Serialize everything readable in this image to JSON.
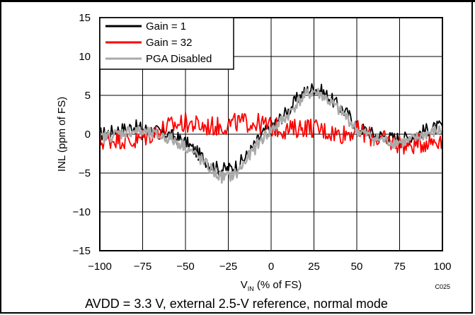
{
  "chart_data": {
    "type": "line",
    "title": "",
    "xlabel_main": "V",
    "xlabel_sub": "IN",
    "xlabel_rest": " (% of FS)",
    "ylabel": "INL (ppm of FS)",
    "xlim": [
      -100,
      100
    ],
    "ylim": [
      -15,
      15
    ],
    "xticks": [
      "−100",
      "−75",
      "−50",
      "−25",
      "0",
      "25",
      "50",
      "75",
      "100"
    ],
    "yticks": [
      "15",
      "10",
      "5",
      "0",
      "−5",
      "−10",
      "−15"
    ],
    "grid": true,
    "legend_placement": "top-left",
    "code": "C025",
    "caption": "AVDD = 3.3 V, external 2.5-V reference, normal mode",
    "series": [
      {
        "name": "Gain = 1",
        "color": "#000000",
        "x": [
          -100,
          -90,
          -80,
          -70,
          -60,
          -50,
          -45,
          -40,
          -35,
          -30,
          -25,
          -20,
          -15,
          -10,
          -5,
          0,
          5,
          10,
          15,
          20,
          25,
          30,
          35,
          40,
          45,
          50,
          55,
          60,
          70,
          80,
          90,
          100
        ],
        "y": [
          0,
          0.5,
          1,
          0.5,
          0,
          -1,
          -2,
          -3,
          -4,
          -4.5,
          -4.5,
          -4,
          -3,
          -1.5,
          0,
          1,
          2,
          3,
          4.5,
          5.5,
          6,
          5.5,
          4.5,
          3.5,
          2.5,
          1,
          0.5,
          0,
          -0.5,
          -0.5,
          0.5,
          1
        ]
      },
      {
        "name": "Gain = 32",
        "color": "#ff0000",
        "x": [
          -100,
          -90,
          -80,
          -70,
          -60,
          -50,
          -40,
          -30,
          -20,
          -10,
          0,
          10,
          20,
          30,
          40,
          50,
          60,
          70,
          80,
          90,
          100
        ],
        "y": [
          -1,
          -0.5,
          -1,
          0,
          1,
          1.5,
          1,
          1,
          1.5,
          1.5,
          1,
          0.5,
          1,
          0.5,
          0,
          0.5,
          -0.5,
          -1,
          -1.5,
          -1,
          -0.5
        ]
      },
      {
        "name": "PGA Disabled",
        "color": "#aaaaaa",
        "x": [
          -100,
          -90,
          -80,
          -70,
          -60,
          -50,
          -45,
          -40,
          -35,
          -30,
          -25,
          -20,
          -15,
          -10,
          -5,
          0,
          5,
          10,
          15,
          20,
          25,
          30,
          35,
          40,
          45,
          50,
          55,
          60,
          70,
          80,
          90,
          100
        ],
        "y": [
          -0.5,
          0,
          0.5,
          0,
          -0.5,
          -1.5,
          -2.5,
          -3.5,
          -4.5,
          -5.5,
          -5.5,
          -5,
          -3.5,
          -2,
          -0.5,
          0.5,
          1.5,
          2.5,
          4,
          5,
          5.5,
          5,
          4,
          3,
          2,
          0.5,
          0,
          -0.5,
          -1,
          -1,
          0,
          0.5
        ]
      }
    ]
  }
}
